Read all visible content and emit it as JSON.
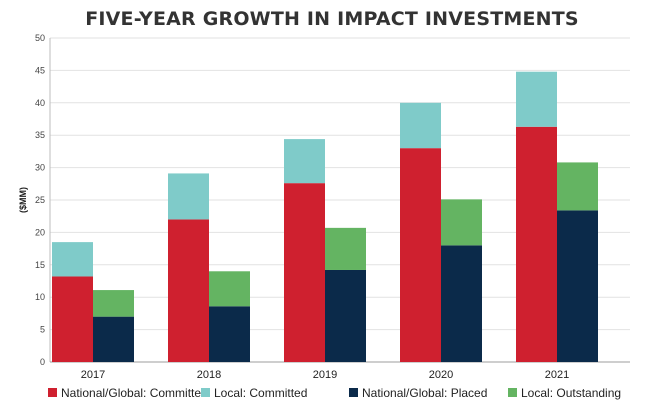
{
  "chart_data": {
    "type": "bar",
    "title": "FIVE-YEAR GROWTH IN IMPACT INVESTMENTS",
    "ylabel": "($MM)",
    "xlabel": "",
    "ylim": [
      0,
      50
    ],
    "yticks": [
      0,
      5,
      10,
      15,
      20,
      25,
      30,
      35,
      40,
      45,
      50
    ],
    "categories": [
      "2017",
      "2018",
      "2019",
      "2020",
      "2021"
    ],
    "grid": true,
    "legend_position": "bottom",
    "stacks": [
      {
        "series": [
          {
            "name": "National/Global: Committed",
            "color": "#cf202f",
            "values": [
              13.2,
              22.0,
              27.6,
              33.0,
              36.3
            ]
          },
          {
            "name": "Local: Committed",
            "color": "#7fcbc9",
            "values": [
              5.3,
              7.1,
              6.8,
              7.0,
              8.5
            ]
          }
        ]
      },
      {
        "series": [
          {
            "name": "National/Global: Placed",
            "color": "#0b2a4a",
            "values": [
              7.0,
              8.6,
              14.2,
              18.0,
              23.4
            ]
          },
          {
            "name": "Local: Outstanding",
            "color": "#64b462",
            "values": [
              4.1,
              5.4,
              6.5,
              7.1,
              7.4
            ]
          }
        ]
      }
    ],
    "legend": [
      {
        "label": "National/Global: Committed",
        "color": "#cf202f"
      },
      {
        "label": "Local: Committed",
        "color": "#7fcbc9"
      },
      {
        "label": "National/Global: Placed",
        "color": "#0b2a4a"
      },
      {
        "label": "Local: Outstanding",
        "color": "#64b462"
      }
    ]
  }
}
